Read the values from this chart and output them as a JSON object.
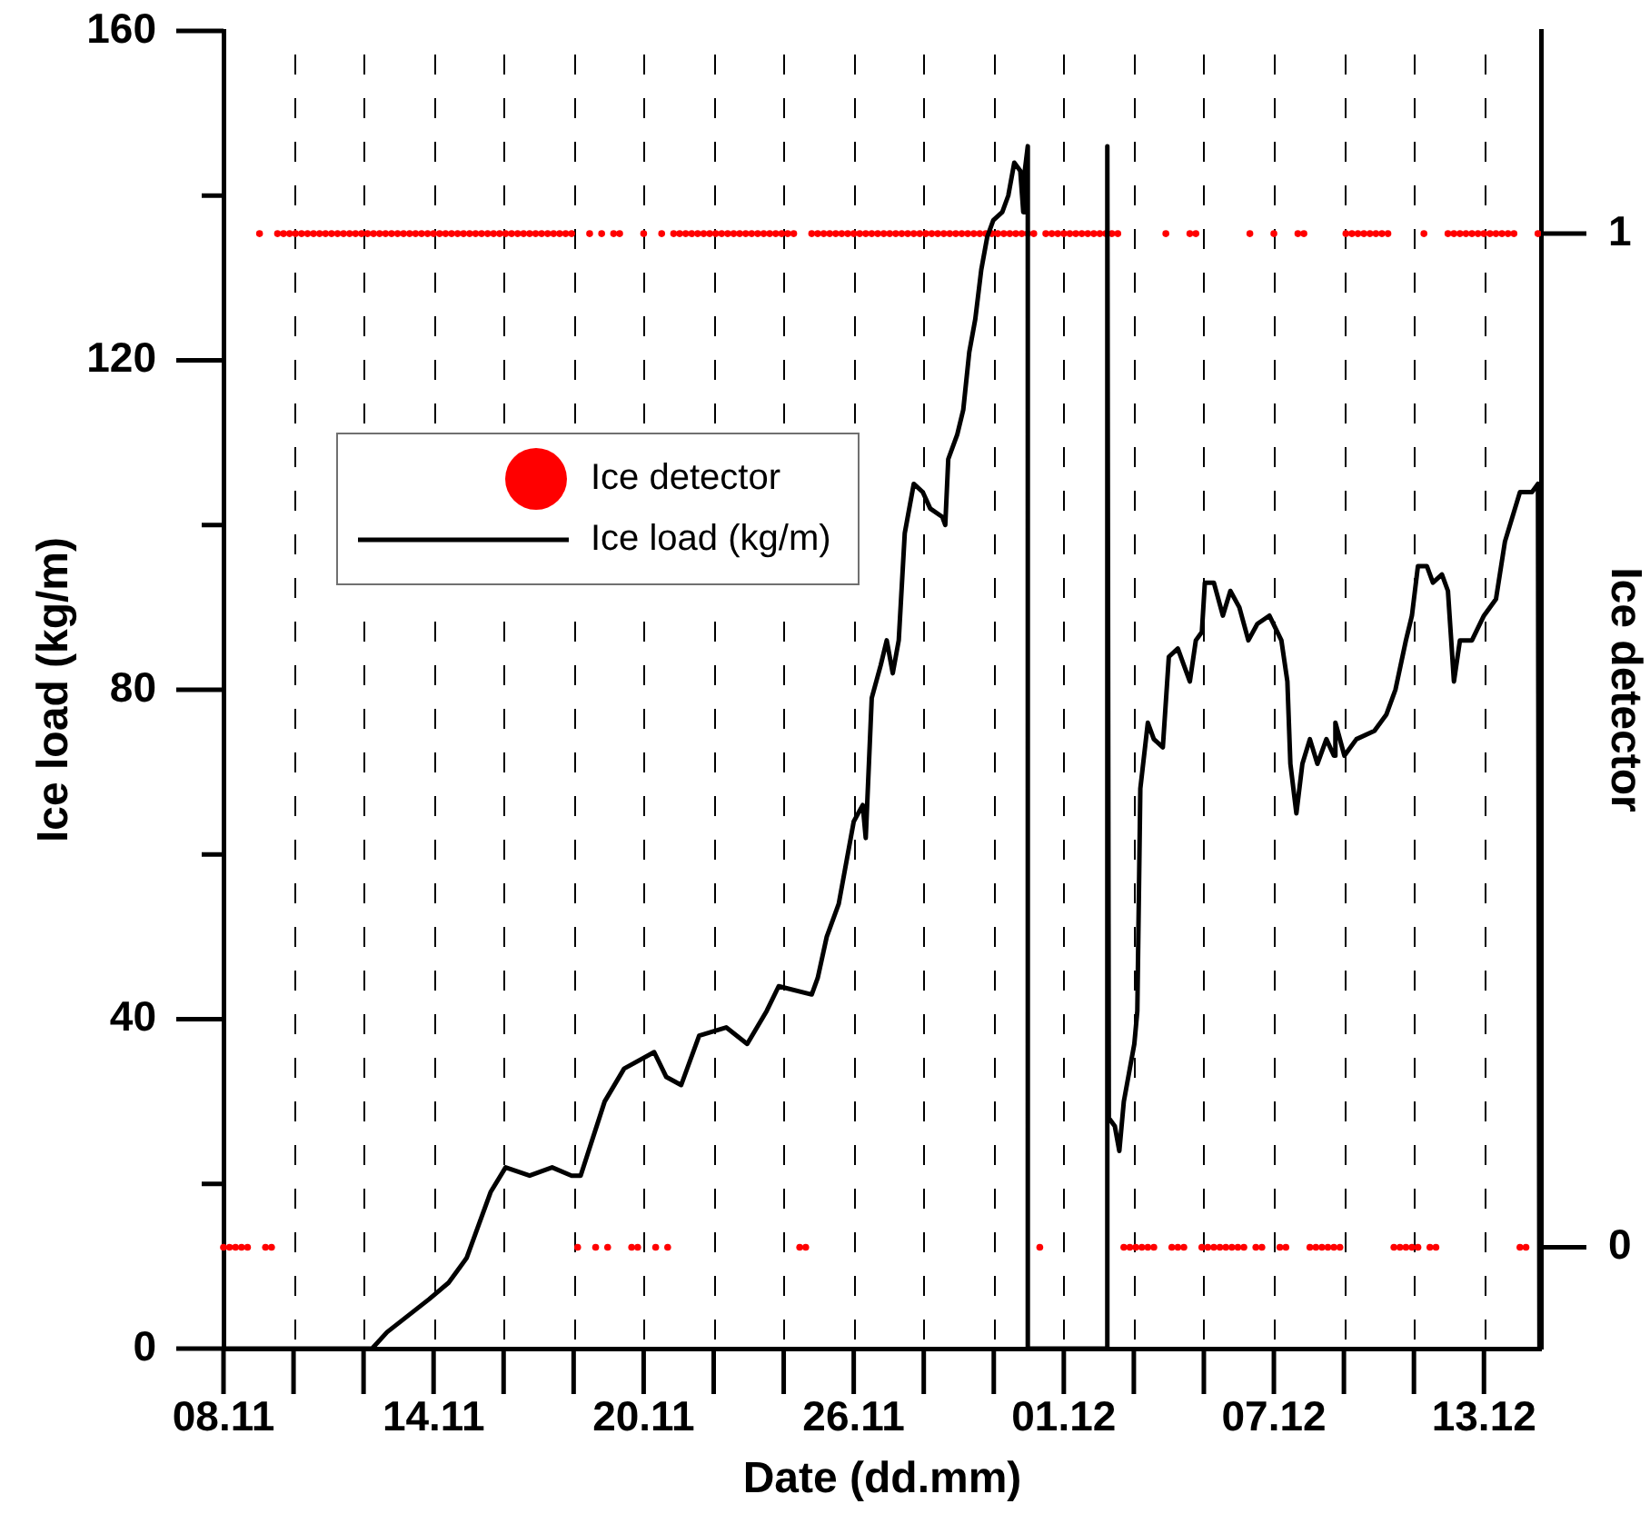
{
  "chart_data": {
    "type": "line",
    "xlabel": "Date (dd.mm)",
    "ylabel": "Ice load (kg/m)",
    "y2label": "Ice detector",
    "xlim": [
      "--11-08T12:00",
      "--12-15T02:00"
    ],
    "xticks": [
      {
        "value": "--11-08T12:00",
        "label": "08.11"
      },
      {
        "value": "--11-10T10:40",
        "label": null
      },
      {
        "value": "--11-12T09:20",
        "label": null
      },
      {
        "value": "--11-14T08:00",
        "label": "14.11"
      },
      {
        "value": "--11-16T06:40",
        "label": null
      },
      {
        "value": "--11-18T05:20",
        "label": null
      },
      {
        "value": "--11-20T04:00",
        "label": "20.11"
      },
      {
        "value": "--11-22T02:40",
        "label": null
      },
      {
        "value": "--11-24T01:20",
        "label": null
      },
      {
        "value": "--11-26T00:00",
        "label": "26.11"
      },
      {
        "value": "--11-27T22:40",
        "label": null
      },
      {
        "value": "--11-29T21:20",
        "label": null
      },
      {
        "value": "--12-01T20:00",
        "label": "01.12"
      },
      {
        "value": "--12-03T18:40",
        "label": null
      },
      {
        "value": "--12-05T17:20",
        "label": null
      },
      {
        "value": "--12-07T16:00",
        "label": "07.12"
      },
      {
        "value": "--12-09T14:40",
        "label": null
      },
      {
        "value": "--12-11T13:20",
        "label": null
      },
      {
        "value": "--12-13T12:00",
        "label": "13.12"
      }
    ],
    "ylim": [
      0,
      160
    ],
    "yticks": [
      0,
      {
        "value": 20,
        "label": null
      },
      40,
      {
        "value": 60,
        "label": null
      },
      80,
      {
        "value": 100,
        "label": null
      },
      120,
      {
        "value": 140,
        "label": null
      },
      160
    ],
    "y2lim": [
      -0.1,
      1.2
    ],
    "y2ticks": [
      0,
      1
    ],
    "grid": "x",
    "legend": "top left",
    "series": [
      {
        "name": "Ice detector",
        "type": "scatter",
        "axis": "y2",
        "color": "#ff0000",
        "marker": "circle",
        "x": [
          "--11-08T12:00",
          "--11-08T16:00",
          "--11-08T20:00",
          "--11-09T00:00",
          "--11-09T04:00",
          "--11-09T12:00",
          "--11-09T16:00",
          "--11-09T20:00",
          "--11-10T00:00",
          "--11-10T04:00",
          "--11-10T08:00",
          "--11-10T12:00",
          "--11-10T16:00",
          "--11-10T20:00",
          "--11-11T00:00",
          "--11-11T04:00",
          "--11-11T08:00",
          "--11-11T12:00",
          "--11-11T16:00",
          "--11-11T20:00",
          "--11-12T00:00",
          "--11-12T04:00",
          "--11-12T08:00",
          "--11-12T12:00",
          "--11-12T16:00",
          "--11-12T20:00",
          "--11-13T00:00",
          "--11-13T04:00",
          "--11-13T08:00",
          "--11-13T12:00",
          "--11-13T16:00",
          "--11-13T20:00",
          "--11-14T00:00",
          "--11-14T04:00",
          "--11-14T08:00",
          "--11-14T12:00",
          "--11-14T16:00",
          "--11-14T20:00",
          "--11-15T00:00",
          "--11-15T04:00",
          "--11-15T08:00",
          "--11-15T12:00",
          "--11-15T16:00",
          "--11-15T20:00",
          "--11-16T00:00",
          "--11-16T04:00",
          "--11-16T08:00",
          "--11-16T12:00",
          "--11-16T16:00",
          "--11-16T20:00",
          "--11-17T00:00",
          "--11-17T04:00",
          "--11-17T08:00",
          "--11-17T12:00",
          "--11-17T16:00",
          "--11-17T20:00",
          "--11-18T00:00",
          "--11-18T04:00",
          "--11-18T08:00",
          "--11-18T16:00",
          "--11-18T20:00",
          "--11-19T00:00",
          "--11-19T04:00",
          "--11-19T08:00",
          "--11-19T12:00",
          "--11-19T20:00",
          "--11-20T00:00",
          "--11-20T04:00",
          "--11-20T12:00",
          "--11-20T16:00",
          "--11-20T20:00",
          "--11-21T00:00",
          "--11-21T04:00",
          "--11-21T08:00",
          "--11-21T12:00",
          "--11-21T16:00",
          "--11-21T20:00",
          "--11-22T00:00",
          "--11-22T04:00",
          "--11-22T08:00",
          "--11-22T12:00",
          "--11-22T16:00",
          "--11-22T20:00",
          "--11-23T00:00",
          "--11-23T04:00",
          "--11-23T08:00",
          "--11-23T12:00",
          "--11-23T16:00",
          "--11-23T20:00",
          "--11-24T00:00",
          "--11-24T04:00",
          "--11-24T08:00",
          "--11-24T12:00",
          "--11-24T16:00",
          "--11-24T20:00",
          "--11-25T00:00",
          "--11-25T04:00",
          "--11-25T08:00",
          "--11-25T12:00",
          "--11-25T16:00",
          "--11-25T20:00",
          "--11-26T00:00",
          "--11-26T04:00",
          "--11-26T08:00",
          "--11-26T12:00",
          "--11-26T16:00",
          "--11-26T20:00",
          "--11-27T00:00",
          "--11-27T04:00",
          "--11-27T08:00",
          "--11-27T12:00",
          "--11-27T16:00",
          "--11-27T20:00",
          "--11-28T00:00",
          "--11-28T04:00",
          "--11-28T08:00",
          "--11-28T12:00",
          "--11-28T16:00",
          "--11-28T20:00",
          "--11-29T00:00",
          "--11-29T04:00",
          "--11-29T08:00",
          "--11-29T12:00",
          "--11-29T16:00",
          "--11-29T20:00",
          "--11-30T00:00",
          "--11-30T04:00",
          "--11-30T08:00",
          "--11-30T12:00",
          "--11-30T16:00",
          "--11-30T20:00",
          "--12-01T00:00",
          "--12-01T04:00",
          "--12-01T08:00",
          "--12-01T12:00",
          "--12-01T16:00",
          "--12-01T20:00",
          "--12-02T00:00",
          "--12-02T04:00",
          "--12-02T08:00",
          "--12-02T12:00",
          "--12-02T16:00",
          "--12-02T20:00",
          "--12-03T00:00",
          "--12-03T04:00",
          "--12-03T08:00",
          "--12-03T12:00",
          "--12-03T16:00",
          "--12-03T20:00",
          "--12-04T00:00",
          "--12-04T04:00",
          "--12-04T08:00",
          "--12-04T16:00",
          "--12-04T20:00",
          "--12-05T00:00",
          "--12-05T04:00",
          "--12-05T08:00",
          "--12-05T12:00",
          "--12-05T16:00",
          "--12-05T20:00",
          "--12-06T00:00",
          "--12-06T04:00",
          "--12-06T08:00",
          "--12-06T12:00",
          "--12-06T16:00",
          "--12-06T20:00",
          "--12-07T00:00",
          "--12-07T04:00",
          "--12-07T08:00",
          "--12-07T16:00",
          "--12-07T20:00",
          "--12-08T00:00",
          "--12-08T08:00",
          "--12-08T12:00",
          "--12-08T16:00",
          "--12-08T20:00",
          "--12-09T00:00",
          "--12-09T04:00",
          "--12-09T08:00",
          "--12-09T12:00",
          "--12-09T16:00",
          "--12-09T20:00",
          "--12-10T00:00",
          "--12-10T04:00",
          "--12-10T08:00",
          "--12-10T12:00",
          "--12-10T16:00",
          "--12-10T20:00",
          "--12-11T00:00",
          "--12-11T04:00",
          "--12-11T08:00",
          "--12-11T12:00",
          "--12-11T16:00",
          "--12-11T20:00",
          "--12-12T00:00",
          "--12-12T04:00",
          "--12-12T12:00",
          "--12-12T16:00",
          "--12-12T20:00",
          "--12-13T00:00",
          "--12-13T04:00",
          "--12-13T08:00",
          "--12-13T12:00",
          "--12-13T16:00",
          "--12-13T20:00",
          "--12-14T00:00",
          "--12-14T04:00",
          "--12-14T08:00",
          "--12-14T12:00",
          "--12-14T16:00",
          "--12-15T00:00"
        ],
        "values": [
          0,
          0,
          0,
          0,
          0,
          1,
          0,
          0,
          1,
          1,
          1,
          1,
          1,
          1,
          1,
          1,
          1,
          1,
          1,
          1,
          1,
          1,
          1,
          1,
          1,
          1,
          1,
          1,
          1,
          1,
          1,
          1,
          1,
          1,
          1,
          1,
          1,
          1,
          1,
          1,
          1,
          1,
          1,
          1,
          1,
          1,
          1,
          1,
          1,
          1,
          1,
          1,
          1,
          1,
          1,
          1,
          1,
          1,
          0,
          1,
          0,
          1,
          0,
          1,
          1,
          0,
          0,
          1,
          0,
          1,
          0,
          1,
          1,
          1,
          1,
          1,
          1,
          1,
          1,
          1,
          1,
          1,
          1,
          1,
          1,
          1,
          1,
          1,
          1,
          1,
          1,
          1,
          0,
          0,
          1,
          1,
          1,
          1,
          1,
          1,
          1,
          1,
          1,
          1,
          1,
          1,
          1,
          1,
          1,
          1,
          1,
          1,
          1,
          1,
          1,
          1,
          1,
          1,
          1,
          1,
          1,
          1,
          1,
          1,
          1,
          1,
          1,
          1,
          1,
          1,
          1,
          1,
          0,
          1,
          1,
          1,
          1,
          1,
          1,
          1,
          1,
          1,
          1,
          1,
          1,
          1,
          0,
          0,
          0,
          0,
          0,
          0,
          1,
          0,
          0,
          0,
          1,
          1,
          0,
          0,
          0,
          0,
          0,
          0,
          0,
          0,
          1,
          0,
          0,
          1,
          0,
          0,
          1,
          1,
          0,
          0,
          0,
          0,
          0,
          0,
          1,
          1,
          1,
          1,
          1,
          1,
          1,
          1,
          0,
          0,
          0,
          0,
          0,
          1,
          0,
          0,
          1,
          1,
          1,
          1,
          1,
          1,
          1,
          1,
          1,
          1,
          1,
          1,
          0,
          0,
          1
        ]
      },
      {
        "name": "Ice load (kg/m)",
        "type": "line",
        "color": "#000000",
        "x": [
          "--11-08T12:00",
          "--11-12T15:00",
          "--11-13T01:00",
          "--11-14T05:00",
          "--11-14T18:00",
          "--11-15T06:00",
          "--11-15T14:00",
          "--11-15T22:00",
          "--11-16T08:00",
          "--11-17T00:00",
          "--11-17T15:00",
          "--11-18T04:00",
          "--11-18T10:00",
          "--11-19T02:00",
          "--11-19T15:00",
          "--11-20T11:00",
          "--11-20T19:00",
          "--11-21T05:00",
          "--11-21T17:00",
          "--11-22T11:00",
          "--11-23T01:00",
          "--11-23T14:00",
          "--11-23T22:00",
          "--11-24T20:00",
          "--11-25T00:00",
          "--11-25T06:00",
          "--11-25T14:00",
          "--11-26T00:00",
          "--11-26T06:00",
          "--11-26T08:00",
          "--11-26T12:00",
          "--11-26T18:00",
          "--11-26T22:00",
          "--11-27T02:00",
          "--11-27T06:00",
          "--11-27T10:00",
          "--11-27T16:00",
          "--11-27T22:00",
          "--11-28T03:00",
          "--11-28T11:00",
          "--11-28T13:00",
          "--11-28T15:00",
          "--11-28T21:00",
          "--11-29T01:00",
          "--11-29T05:00",
          "--11-29T09:00",
          "--11-29T13:00",
          "--11-29T17:00",
          "--11-29T21:00",
          "--11-30T03:00",
          "--11-30T07:00",
          "--11-30T11:00",
          "--11-30T15:00",
          "--11-30T17:00",
          "--11-30T18:00",
          "--11-30T20:00",
          "--11-30T20:00",
          "--12-03T01:00",
          "--12-03T01:00",
          "--12-03T02:00",
          "--12-03T06:00",
          "--12-03T09:00",
          "--12-03T12:00",
          "--12-03T16:00",
          "--12-03T19:00",
          "--12-03T21:00",
          "--12-03T23:00",
          "--12-04T04:00",
          "--12-04T08:00",
          "--12-04T14:00",
          "--12-04T18:00",
          "--12-05T00:00",
          "--12-05T04:00",
          "--12-05T08:00",
          "--12-05T12:00",
          "--12-05T16:00",
          "--12-05T18:00",
          "--12-06T00:00",
          "--12-06T06:00",
          "--12-06T11:00",
          "--12-06T17:00",
          "--12-06T23:00",
          "--12-07T05:00",
          "--12-07T13:00",
          "--12-07T21:00",
          "--12-08T01:00",
          "--12-08T03:00",
          "--12-08T07:00",
          "--12-08T11:00",
          "--12-08T16:00",
          "--12-08T21:00",
          "--12-09T03:00",
          "--12-09T08:00",
          "--12-09T09:00",
          "--12-09T15:00",
          "--12-09T23:00",
          "--12-10T11:00",
          "--12-10T19:00",
          "--12-11T01:00",
          "--12-11T08:00",
          "--12-11T12:00",
          "--12-11T16:00",
          "--12-11T22:00",
          "--12-12T02:00",
          "--12-12T08:00",
          "--12-12T12:00",
          "--12-12T16:00",
          "--12-12T20:00",
          "--12-13T04:00",
          "--12-13T12:00",
          "--12-13T20:00",
          "--12-14T02:00",
          "--12-14T12:00",
          "--12-14T20:00",
          "--12-15T00:00",
          "--12-15T01:00"
        ],
        "values": [
          0,
          0,
          2,
          6,
          8,
          11,
          15,
          19,
          22,
          21,
          22,
          21,
          21,
          30,
          34,
          36,
          33,
          32,
          38,
          39,
          37,
          41,
          44,
          43,
          45,
          50,
          54,
          64,
          66,
          62,
          79,
          83,
          86,
          82,
          86,
          99,
          105,
          104,
          102,
          101,
          100,
          108,
          111,
          114,
          121,
          125,
          131,
          135,
          137,
          138,
          140,
          144,
          143,
          138,
          143,
          146,
          0,
          0,
          146,
          28,
          27,
          24,
          30,
          34,
          37,
          41,
          68,
          76,
          74,
          73,
          84,
          85,
          83,
          81,
          86,
          87,
          93,
          93,
          89,
          92,
          90,
          86,
          88,
          89,
          86,
          81,
          71,
          65,
          71,
          74,
          71,
          74,
          72,
          76,
          72,
          74,
          75,
          77,
          80,
          86,
          89,
          95,
          95,
          93,
          94,
          92,
          81,
          86,
          86,
          89,
          91,
          98,
          104,
          104,
          105,
          0
        ]
      }
    ]
  }
}
